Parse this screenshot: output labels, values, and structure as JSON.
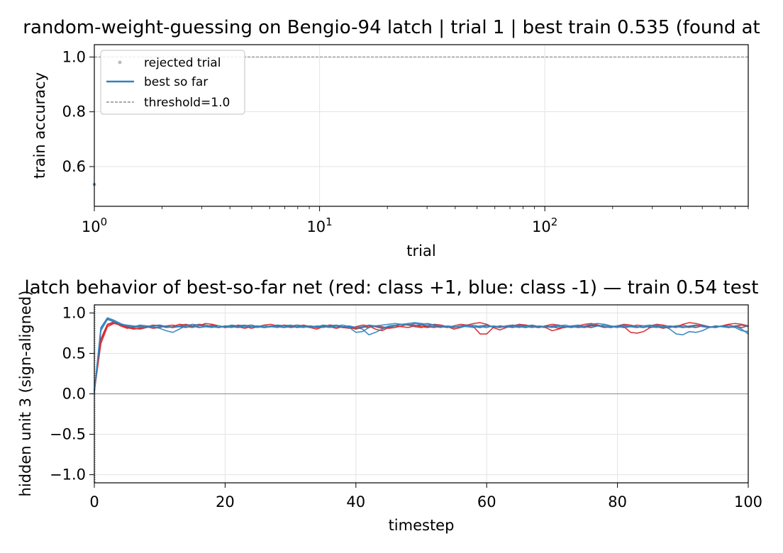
{
  "chart_data": [
    {
      "type": "line",
      "title": "random-weight-guessing on Bengio-94 latch | trial 1 | best train 0.535 (found at",
      "xlabel": "trial",
      "ylabel": "train accuracy",
      "xscale": "log",
      "xlim": [
        1,
        800
      ],
      "ylim": [
        0.455,
        1.045
      ],
      "xticks": [
        1,
        10,
        100
      ],
      "xtick_labels": [
        {
          "base": "10",
          "exp": "0"
        },
        {
          "base": "10",
          "exp": "1"
        },
        {
          "base": "10",
          "exp": "2"
        }
      ],
      "yticks": [
        0.6,
        0.8,
        1.0
      ],
      "ytick_labels": [
        "0.6",
        "0.8",
        "1.0"
      ],
      "grid": true,
      "legend": {
        "placement": "top-left",
        "entries": [
          {
            "label": "rejected trial",
            "style": "dot",
            "color": "#bbbbbb"
          },
          {
            "label": "best so far",
            "style": "line",
            "color": "#3182bd"
          },
          {
            "label": "threshold=1.0",
            "style": "dashed",
            "color": "#777777"
          }
        ]
      },
      "series": [
        {
          "name": "rejected trial",
          "x": [
            1
          ],
          "y": [
            0.535
          ],
          "color": "#bbbbbb"
        },
        {
          "name": "best so far",
          "x": [
            1
          ],
          "y": [
            0.535
          ],
          "color": "#3182bd"
        },
        {
          "name": "threshold=1.0",
          "y": 1.0,
          "color": "#777777"
        }
      ]
    },
    {
      "type": "line",
      "title": "latch behavior of best-so-far net  (red: class +1, blue: class -1) — train 0.54 test",
      "xlabel": "timestep",
      "ylabel": "hidden unit 3 (sign-aligned)",
      "xlim": [
        0,
        100
      ],
      "ylim": [
        -1.1,
        1.1
      ],
      "xticks": [
        0,
        20,
        40,
        60,
        80,
        100
      ],
      "xtick_labels": [
        "0",
        "20",
        "40",
        "60",
        "80",
        "100"
      ],
      "yticks": [
        -1.0,
        -0.5,
        0.0,
        0.5,
        1.0
      ],
      "ytick_labels": [
        "−1.0",
        "−0.5",
        "0.0",
        "0.5",
        "1.0"
      ],
      "grid": true,
      "zero_line": true,
      "series": [
        {
          "color": "#d62728",
          "y": [
            0.05,
            0.66,
            0.85,
            0.88,
            0.86,
            0.82,
            0.8,
            0.81,
            0.83,
            0.85,
            0.84,
            0.82,
            0.83,
            0.86,
            0.85,
            0.83,
            0.84,
            0.87,
            0.86,
            0.84,
            0.82,
            0.83,
            0.85,
            0.84,
            0.81,
            0.83,
            0.85,
            0.86,
            0.84,
            0.82,
            0.83,
            0.85,
            0.84,
            0.82,
            0.8,
            0.83,
            0.85,
            0.84,
            0.82,
            0.81,
            0.83,
            0.85,
            0.84,
            0.8,
            0.78,
            0.82,
            0.84,
            0.86,
            0.85,
            0.83,
            0.82,
            0.84,
            0.86,
            0.85,
            0.83,
            0.8,
            0.82,
            0.85,
            0.87,
            0.88,
            0.86,
            0.82,
            0.79,
            0.82,
            0.84,
            0.86,
            0.85,
            0.83,
            0.82,
            0.84,
            0.86,
            0.85,
            0.83,
            0.82,
            0.84,
            0.86,
            0.87,
            0.85,
            0.83,
            0.82,
            0.84,
            0.86,
            0.85,
            0.83,
            0.82,
            0.84,
            0.86,
            0.85,
            0.83,
            0.82,
            0.86,
            0.88,
            0.87,
            0.85,
            0.83,
            0.82,
            0.84,
            0.86,
            0.87,
            0.86,
            0.84
          ]
        },
        {
          "color": "#d62728",
          "y": [
            0.03,
            0.62,
            0.83,
            0.87,
            0.85,
            0.83,
            0.81,
            0.8,
            0.82,
            0.84,
            0.85,
            0.83,
            0.82,
            0.84,
            0.86,
            0.84,
            0.82,
            0.83,
            0.85,
            0.84,
            0.82,
            0.84,
            0.83,
            0.81,
            0.83,
            0.84,
            0.82,
            0.83,
            0.85,
            0.84,
            0.82,
            0.83,
            0.85,
            0.83,
            0.82,
            0.84,
            0.83,
            0.81,
            0.83,
            0.82,
            0.8,
            0.82,
            0.84,
            0.83,
            0.81,
            0.82,
            0.84,
            0.83,
            0.82,
            0.84,
            0.85,
            0.83,
            0.82,
            0.84,
            0.83,
            0.82,
            0.84,
            0.85,
            0.83,
            0.74,
            0.74,
            0.82,
            0.84,
            0.83,
            0.82,
            0.84,
            0.85,
            0.83,
            0.82,
            0.84,
            0.83,
            0.81,
            0.82,
            0.84,
            0.83,
            0.82,
            0.84,
            0.85,
            0.83,
            0.82,
            0.84,
            0.83,
            0.76,
            0.75,
            0.77,
            0.82,
            0.84,
            0.83,
            0.82,
            0.84,
            0.85,
            0.83,
            0.82,
            0.84,
            0.83,
            0.82,
            0.84,
            0.85,
            0.83,
            0.82,
            0.84
          ]
        },
        {
          "color": "#d62728",
          "y": [
            0.06,
            0.68,
            0.86,
            0.89,
            0.84,
            0.81,
            0.82,
            0.84,
            0.83,
            0.81,
            0.82,
            0.84,
            0.85,
            0.83,
            0.82,
            0.84,
            0.86,
            0.85,
            0.83,
            0.82,
            0.84,
            0.83,
            0.82,
            0.84,
            0.85,
            0.83,
            0.82,
            0.84,
            0.83,
            0.85,
            0.84,
            0.82,
            0.83,
            0.84,
            0.82,
            0.83,
            0.85,
            0.84,
            0.82,
            0.83,
            0.81,
            0.83,
            0.82,
            0.84,
            0.83,
            0.81,
            0.82,
            0.84,
            0.86,
            0.85,
            0.83,
            0.82,
            0.84,
            0.83,
            0.82,
            0.84,
            0.86,
            0.85,
            0.83,
            0.82,
            0.84,
            0.83,
            0.82,
            0.84,
            0.85,
            0.83,
            0.82,
            0.84,
            0.83,
            0.82,
            0.78,
            0.8,
            0.83,
            0.84,
            0.82,
            0.83,
            0.85,
            0.84,
            0.82,
            0.83,
            0.84,
            0.82,
            0.83,
            0.85,
            0.84,
            0.82,
            0.83,
            0.81,
            0.83,
            0.84,
            0.82,
            0.83,
            0.85,
            0.84,
            0.82,
            0.83,
            0.84,
            0.82,
            0.83,
            0.85,
            0.84
          ]
        },
        {
          "color": "#3182bd",
          "y": [
            0.02,
            0.82,
            0.94,
            0.91,
            0.87,
            0.84,
            0.83,
            0.82,
            0.84,
            0.83,
            0.81,
            0.78,
            0.76,
            0.8,
            0.84,
            0.86,
            0.85,
            0.83,
            0.82,
            0.84,
            0.83,
            0.82,
            0.84,
            0.85,
            0.83,
            0.82,
            0.84,
            0.83,
            0.82,
            0.84,
            0.85,
            0.83,
            0.82,
            0.84,
            0.83,
            0.82,
            0.84,
            0.85,
            0.83,
            0.82,
            0.76,
            0.77,
            0.82,
            0.84,
            0.85,
            0.86,
            0.87,
            0.86,
            0.85,
            0.84,
            0.86,
            0.87,
            0.85,
            0.84,
            0.83,
            0.82,
            0.84,
            0.83,
            0.82,
            0.84,
            0.85,
            0.83,
            0.82,
            0.84,
            0.83,
            0.82,
            0.84,
            0.85,
            0.83,
            0.82,
            0.84,
            0.83,
            0.82,
            0.84,
            0.85,
            0.83,
            0.82,
            0.84,
            0.83,
            0.82,
            0.84,
            0.85,
            0.83,
            0.82,
            0.84,
            0.83,
            0.82,
            0.84,
            0.8,
            0.74,
            0.73,
            0.77,
            0.76,
            0.78,
            0.82,
            0.84,
            0.83,
            0.82,
            0.84,
            0.8,
            0.74
          ]
        },
        {
          "color": "#3182bd",
          "y": [
            0.04,
            0.8,
            0.93,
            0.9,
            0.86,
            0.85,
            0.84,
            0.83,
            0.82,
            0.84,
            0.85,
            0.83,
            0.82,
            0.84,
            0.83,
            0.82,
            0.84,
            0.85,
            0.83,
            0.82,
            0.84,
            0.83,
            0.82,
            0.84,
            0.85,
            0.83,
            0.82,
            0.84,
            0.83,
            0.82,
            0.84,
            0.85,
            0.83,
            0.82,
            0.84,
            0.83,
            0.82,
            0.84,
            0.85,
            0.83,
            0.82,
            0.8,
            0.73,
            0.76,
            0.8,
            0.84,
            0.85,
            0.86,
            0.87,
            0.88,
            0.87,
            0.86,
            0.85,
            0.84,
            0.83,
            0.82,
            0.84,
            0.85,
            0.83,
            0.82,
            0.84,
            0.83,
            0.82,
            0.84,
            0.85,
            0.83,
            0.82,
            0.84,
            0.83,
            0.82,
            0.84,
            0.85,
            0.83,
            0.82,
            0.84,
            0.83,
            0.82,
            0.84,
            0.85,
            0.83,
            0.82,
            0.84,
            0.83,
            0.82,
            0.84,
            0.85,
            0.83,
            0.82,
            0.84,
            0.83,
            0.82,
            0.84,
            0.85,
            0.83,
            0.82,
            0.84,
            0.83,
            0.82,
            0.84,
            0.85,
            0.83
          ]
        },
        {
          "color": "#3182bd",
          "y": [
            0.01,
            0.78,
            0.92,
            0.89,
            0.86,
            0.84,
            0.83,
            0.85,
            0.84,
            0.82,
            0.83,
            0.84,
            0.82,
            0.83,
            0.85,
            0.84,
            0.82,
            0.83,
            0.84,
            0.82,
            0.83,
            0.85,
            0.84,
            0.82,
            0.83,
            0.84,
            0.82,
            0.83,
            0.85,
            0.84,
            0.82,
            0.83,
            0.84,
            0.82,
            0.83,
            0.85,
            0.84,
            0.82,
            0.83,
            0.84,
            0.82,
            0.83,
            0.85,
            0.84,
            0.82,
            0.83,
            0.84,
            0.86,
            0.85,
            0.87,
            0.86,
            0.84,
            0.83,
            0.82,
            0.84,
            0.83,
            0.82,
            0.84,
            0.85,
            0.83,
            0.82,
            0.84,
            0.83,
            0.82,
            0.84,
            0.85,
            0.83,
            0.82,
            0.84,
            0.83,
            0.82,
            0.84,
            0.85,
            0.83,
            0.82,
            0.84,
            0.86,
            0.87,
            0.86,
            0.84,
            0.83,
            0.82,
            0.84,
            0.83,
            0.82,
            0.84,
            0.85,
            0.83,
            0.82,
            0.84,
            0.83,
            0.82,
            0.84,
            0.85,
            0.83,
            0.82,
            0.84,
            0.83,
            0.82,
            0.78,
            0.77
          ]
        }
      ]
    }
  ]
}
